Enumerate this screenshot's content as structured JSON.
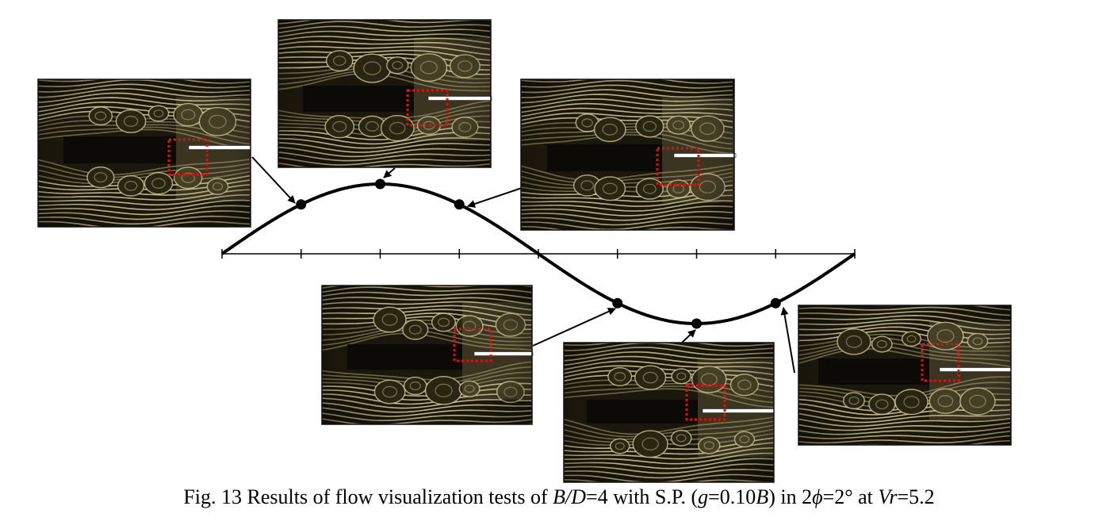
{
  "figure": {
    "caption": {
      "prefix": "Fig. 13 Results of flow visualization tests of ",
      "ratio_var": "B/D",
      "ratio_eq": "=4 with S.P. (",
      "gap_var": "g",
      "gap_eq": "=0.10",
      "gap_unit_var": "B",
      "mid": ") in 2",
      "phi": "ϕ",
      "angle": "=2° at ",
      "vr_var": "Vr",
      "vr_eq": "=5.2"
    },
    "phase_points": 8,
    "marked_phases": [
      1,
      2,
      3,
      5,
      6,
      7
    ],
    "photos": [
      {
        "name": "photo-phase-1",
        "phase": 1
      },
      {
        "name": "photo-phase-2",
        "phase": 2
      },
      {
        "name": "photo-phase-3",
        "phase": 3
      },
      {
        "name": "photo-phase-5",
        "phase": 5
      },
      {
        "name": "photo-phase-6",
        "phase": 6
      },
      {
        "name": "photo-phase-7",
        "phase": 7
      }
    ],
    "colors": {
      "curve": "#000000",
      "photo_bg": "#1b170c",
      "streak": "#d8cf9e",
      "streak_dim": "#7d7550",
      "body": "#0b0a06",
      "dashed_box": "#e01010",
      "plate": "#ffffff"
    }
  }
}
